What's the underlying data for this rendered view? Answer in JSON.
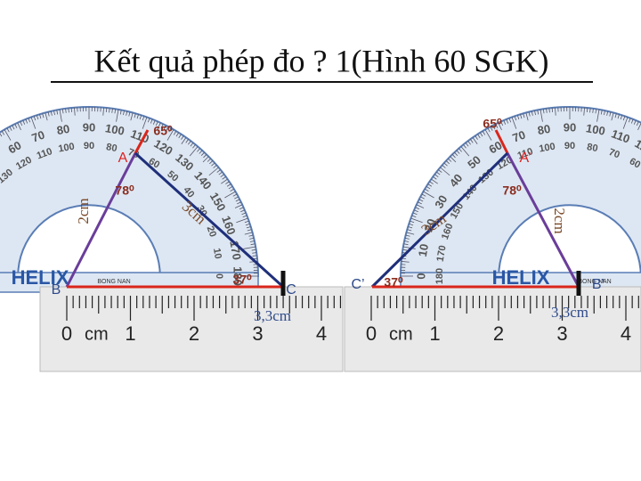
{
  "title": "Kết quả phép đo ? 1(Hình 60 SGK)",
  "protractor": {
    "scale": [
      "0",
      "10",
      "20",
      "30",
      "40",
      "50",
      "60",
      "70",
      "80",
      "90",
      "100",
      "110",
      "120",
      "130",
      "140",
      "150",
      "160",
      "170",
      "180"
    ],
    "brand": "HELIX",
    "maker": "BONG NAN"
  },
  "ruler": {
    "numbers": [
      "0",
      "1",
      "2",
      "3",
      "4"
    ],
    "unit": "cm"
  },
  "figures": [
    {
      "vertices": [
        "A",
        "B",
        "C"
      ],
      "angles": [
        "65⁰",
        "78⁰",
        "37⁰"
      ],
      "sides": [
        "2cm",
        "3cm",
        "3,3cm"
      ]
    },
    {
      "vertices": [
        "A’",
        "B’",
        "C’"
      ],
      "angles": [
        "65⁰",
        "78⁰",
        "37⁰"
      ],
      "sides": [
        "2cm",
        "3cm",
        "3,3cm"
      ]
    }
  ]
}
